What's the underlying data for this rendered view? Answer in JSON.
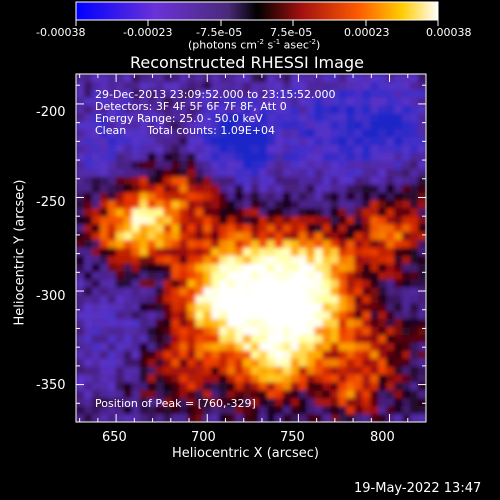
{
  "colorbar": {
    "tick_labels": [
      "-0.00038",
      "-0.00023",
      "-7.5e-05",
      "7.5e-05",
      "0.00023",
      "0.00038"
    ],
    "units": "(photons cm",
    "units_sup1": "-2",
    "units_mid": " s",
    "units_sup2": "-1",
    "units_end": " asec",
    "units_sup3": "-2",
    "units_close": ")"
  },
  "plot": {
    "title": "Reconstructed RHESSI Image",
    "xlabel": "Heliocentric X (arcsec)",
    "ylabel": "Heliocentric Y (arcsec)",
    "xticks": [
      "650",
      "700",
      "750",
      "800"
    ],
    "yticks": [
      "-200",
      "-250",
      "-300",
      "-350"
    ],
    "xrange": [
      628,
      820
    ],
    "yrange": [
      -370,
      -184
    ],
    "annotations": [
      "29-Dec-2013 23:09:52.000 to 23:15:52.000",
      "Detectors: 3F 4F 5F 6F 7F 8F, Att 0",
      "Energy Range: 25.0 - 50.0 keV",
      "Clean      Total counts: 1.09E+04"
    ],
    "peak_label": "Position of Peak = [760,-329]",
    "peak": [
      760,
      -329
    ]
  },
  "timestamp": "19-May-2022 13:47",
  "colormap": "blue-purple-black-red-yellow-white"
}
